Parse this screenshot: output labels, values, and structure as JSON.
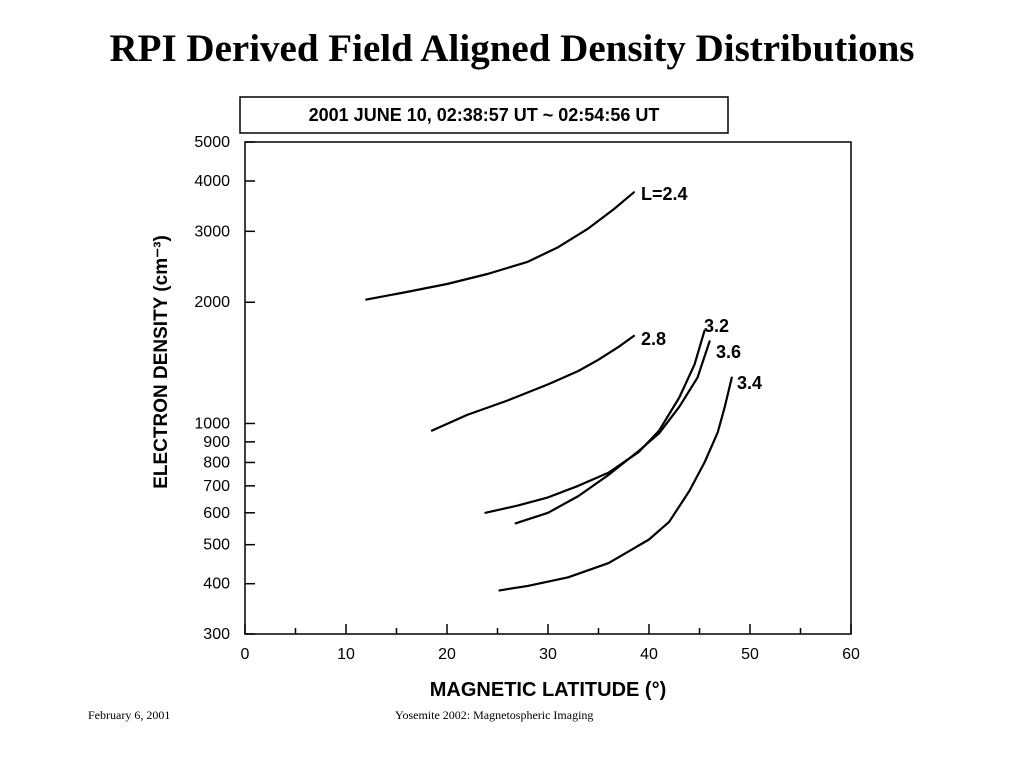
{
  "slide": {
    "title": "RPI Derived Field Aligned Density Distributions",
    "footer_left": "February 6, 2001",
    "footer_center": "Yosemite 2002: Magnetospheric Imaging"
  },
  "chart_data": {
    "type": "line",
    "title": "2001 JUNE 10, 02:38:57 UT ~ 02:54:56 UT",
    "xlabel": "MAGNETIC LATITUDE (°)",
    "ylabel": "ELECTRON DENSITY (cm⁻³)",
    "xlim": [
      0,
      60
    ],
    "ylim": [
      300,
      5000
    ],
    "yscale": "log",
    "x_ticks": [
      0,
      10,
      20,
      30,
      40,
      50,
      60
    ],
    "y_ticks": [
      300,
      400,
      500,
      600,
      700,
      800,
      900,
      1000,
      2000,
      3000,
      4000,
      5000
    ],
    "grid": false,
    "series": [
      {
        "name": "L=2.4",
        "x": [
          12,
          16,
          20,
          24,
          28,
          31,
          34,
          36.5,
          38.5
        ],
        "y": [
          2030,
          2120,
          2220,
          2350,
          2520,
          2740,
          3050,
          3400,
          3750
        ]
      },
      {
        "name": "2.8",
        "x": [
          18.5,
          22,
          26,
          30,
          33,
          35,
          37,
          38.5
        ],
        "y": [
          960,
          1050,
          1140,
          1250,
          1350,
          1440,
          1550,
          1650
        ]
      },
      {
        "name": "3.2",
        "x": [
          23.8,
          27,
          30,
          33,
          36,
          39,
          41,
          43,
          44.5,
          45.5
        ],
        "y": [
          600,
          625,
          655,
          700,
          755,
          850,
          960,
          1160,
          1400,
          1700
        ]
      },
      {
        "name": "3.6",
        "x": [
          26.8,
          30,
          33,
          36,
          39,
          41,
          43,
          44.8,
          46
        ],
        "y": [
          565,
          600,
          660,
          745,
          855,
          945,
          1100,
          1300,
          1600
        ]
      },
      {
        "name": "3.4",
        "x": [
          25.2,
          28,
          32,
          36,
          40,
          42,
          44,
          45.5,
          46.8,
          47.5,
          48.2
        ],
        "y": [
          385,
          395,
          415,
          450,
          515,
          570,
          680,
          800,
          950,
          1100,
          1300
        ]
      }
    ]
  }
}
